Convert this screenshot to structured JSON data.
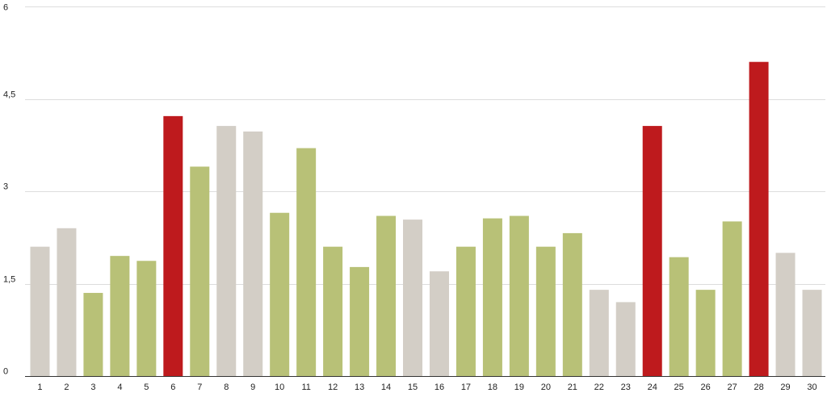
{
  "chart_data": {
    "type": "bar",
    "title": "",
    "xlabel": "",
    "ylabel": "",
    "ylim": [
      0,
      6
    ],
    "yticks": [
      0,
      1.5,
      3,
      4.5,
      6
    ],
    "ytick_labels": [
      "0",
      "1,5",
      "3",
      "4,5",
      "6"
    ],
    "grid": true,
    "legend": "none",
    "categories": [
      "1",
      "2",
      "3",
      "4",
      "5",
      "6",
      "7",
      "8",
      "9",
      "10",
      "11",
      "12",
      "13",
      "14",
      "15",
      "16",
      "17",
      "18",
      "19",
      "20",
      "21",
      "22",
      "23",
      "24",
      "25",
      "26",
      "27",
      "28",
      "29",
      "30"
    ],
    "values": [
      2.1,
      2.4,
      1.35,
      1.95,
      1.87,
      4.22,
      3.4,
      4.06,
      3.97,
      2.65,
      3.7,
      2.1,
      1.77,
      2.6,
      2.54,
      1.7,
      2.1,
      2.56,
      2.6,
      2.1,
      2.32,
      1.4,
      1.2,
      4.06,
      1.93,
      1.4,
      2.51,
      5.1,
      2.0,
      1.4
    ],
    "bar_classes": [
      "gray",
      "gray",
      "green",
      "green",
      "green",
      "red",
      "green",
      "gray",
      "gray",
      "green",
      "green",
      "green",
      "green",
      "green",
      "gray",
      "gray",
      "green",
      "green",
      "green",
      "green",
      "green",
      "gray",
      "gray",
      "red",
      "green",
      "green",
      "green",
      "red",
      "gray",
      "gray"
    ],
    "colors": {
      "gray": "#d3cec6",
      "green": "#b8c177",
      "red": "#be1a1d",
      "grid": "#dddddd",
      "axis": "#333333"
    }
  }
}
